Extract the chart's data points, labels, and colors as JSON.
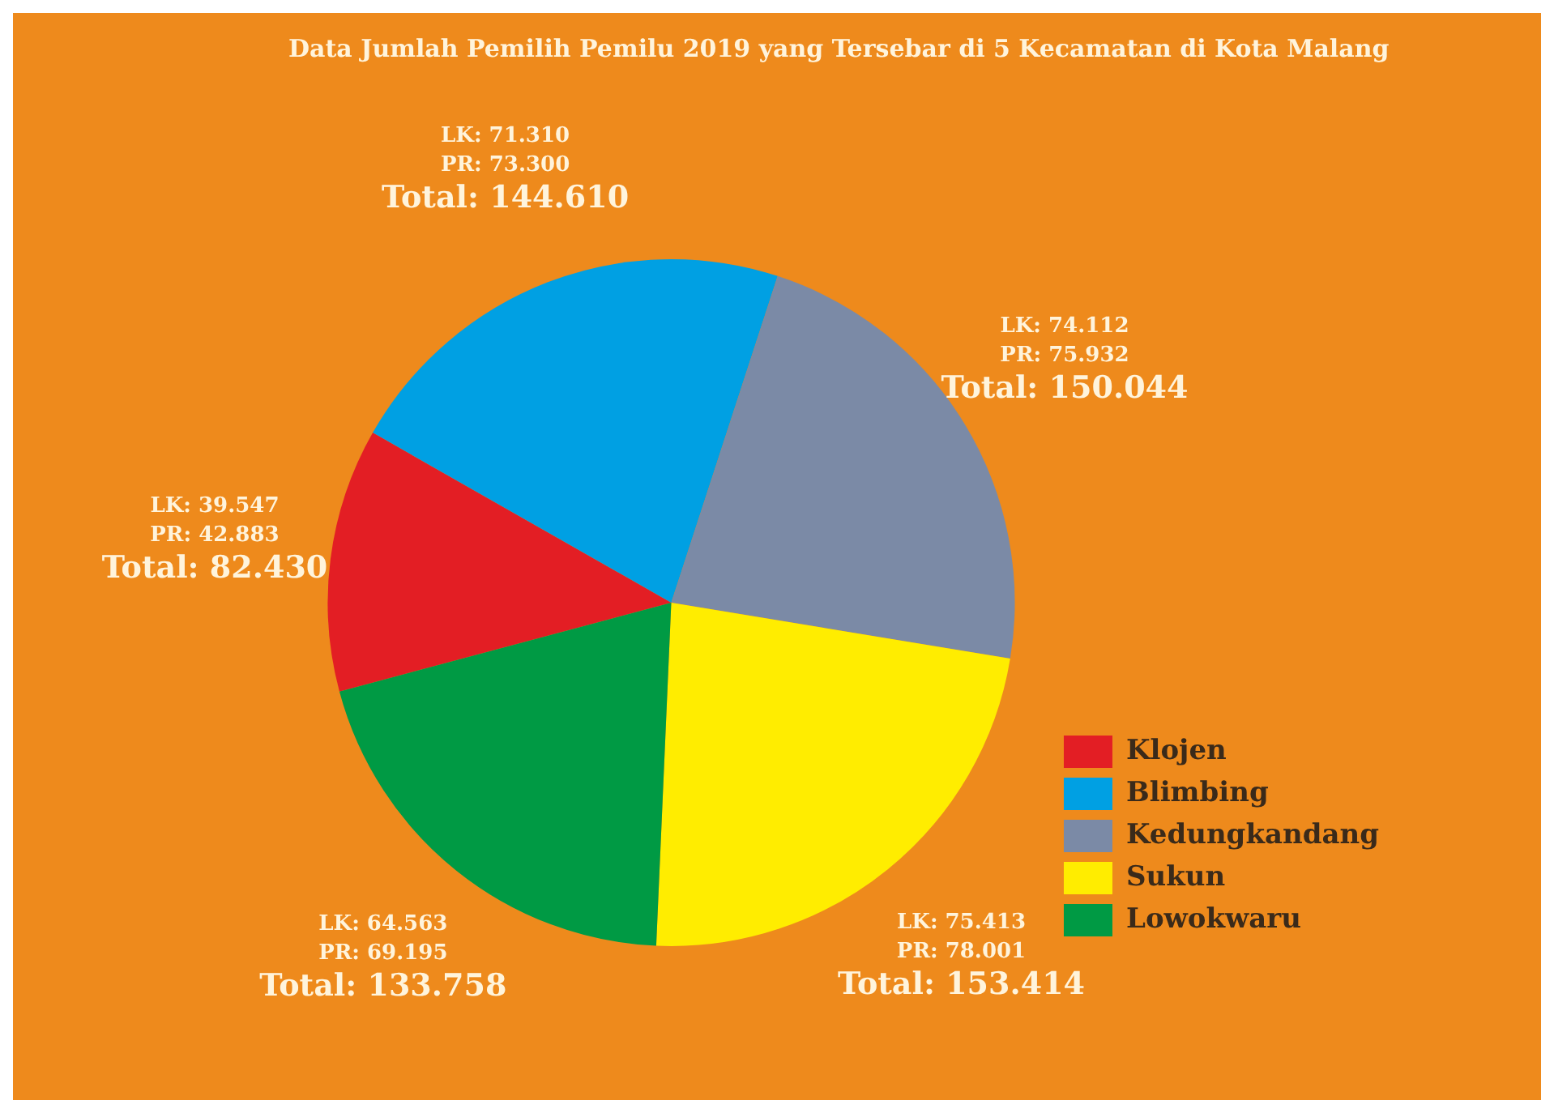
{
  "chart_data": {
    "type": "pie",
    "title": "Data Jumlah Pemilih Pemilu 2019 yang Tersebar di 5 Kecamatan di Kota Malang",
    "categories": [
      "Klojen",
      "Blimbing",
      "Kedungkandang",
      "Sukun",
      "Lowokwaru"
    ],
    "values": [
      82430,
      144610,
      150044,
      153414,
      133758
    ],
    "colors": [
      "#e31e24",
      "#00a0e3",
      "#7b8aa6",
      "#ffed00",
      "#009a44"
    ],
    "value_labels": [
      "LK: 39.547\nPR: 42.883\nTotal: 82.430",
      "LK: 71.310\nPR: 73.300\nTotal: 144.610",
      "LK: 74.112\nPR: 75.932\nTotal: 150.044",
      "LK: 75.413\nPR: 78.001\nTotal: 153.414",
      "LK: 64.563\nPR: 69.195\nTotal: 133.758"
    ],
    "legend": "bottom right"
  }
}
